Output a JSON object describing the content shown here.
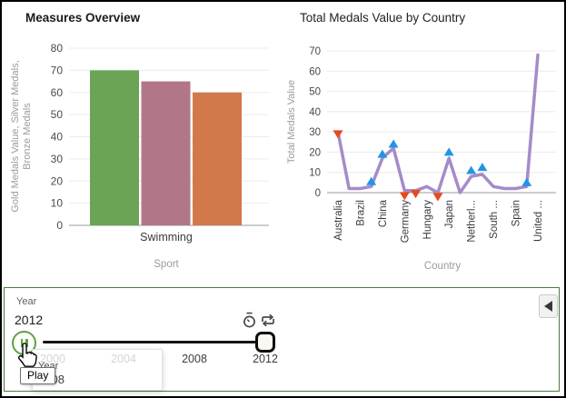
{
  "chart_data": [
    {
      "type": "bar",
      "title": "Measures Overview",
      "xlabel": "Sport",
      "ylabel": "Gold Medals Value, Silver Medals, Bronze Medals",
      "ylabel_lines": [
        "Gold Medals Value, Silver Medals,",
        "Bronze Medals"
      ],
      "categories": [
        "Swimming"
      ],
      "series": [
        {
          "name": "Gold Medals Value",
          "value": 70,
          "color": "#6BA455"
        },
        {
          "name": "Silver Medals",
          "value": 65,
          "color": "#B17789"
        },
        {
          "name": "Bronze Medals",
          "value": 60,
          "color": "#D2794B"
        }
      ],
      "ylim": [
        0,
        80
      ],
      "ytick_step": 10,
      "grid": true,
      "colors": {
        "grid": "#ebebeb",
        "axis": "#9b9b9b",
        "tick": "#4a4a4a",
        "category": "#3a3a3a",
        "axis_title": "#9b9b9b"
      }
    },
    {
      "type": "line",
      "title": "Total Medals Value by Country",
      "xlabel": "Country",
      "ylabel": "Total Medals Value",
      "x_labels": [
        "Australia",
        "Brazil",
        "China",
        "Germany",
        "Hungary",
        "Japan",
        "Netherl...",
        "South ...",
        "Spain",
        "United ..."
      ],
      "label_every": 2,
      "values": [
        30,
        2,
        2,
        3,
        17,
        22,
        1,
        1,
        3,
        0,
        17,
        0,
        8,
        9,
        3,
        2,
        2,
        3,
        68
      ],
      "line_color": "#A58BC8",
      "markers": [
        {
          "i": 0,
          "dir": "down",
          "value": 29
        },
        {
          "i": 3,
          "dir": "up",
          "value": 5.5
        },
        {
          "i": 4,
          "dir": "up",
          "value": 19
        },
        {
          "i": 5,
          "dir": "up",
          "value": 24
        },
        {
          "i": 6,
          "dir": "down",
          "value": -1.5
        },
        {
          "i": 7,
          "dir": "down",
          "value": -0.5
        },
        {
          "i": 9,
          "dir": "down",
          "value": -2
        },
        {
          "i": 10,
          "dir": "up",
          "value": 20
        },
        {
          "i": 12,
          "dir": "up",
          "value": 11
        },
        {
          "i": 13,
          "dir": "up",
          "value": 12.5
        },
        {
          "i": 17,
          "dir": "up",
          "value": 5
        }
      ],
      "marker_colors": {
        "up": "#2196E3",
        "down": "#E8491C"
      },
      "ylim": [
        0,
        70
      ],
      "ytick_step": 10,
      "grid": true,
      "colors": {
        "grid": "#ebebeb",
        "axis": "#9b9b9b",
        "tick": "#4a4a4a",
        "category": "#3a3a3a",
        "axis_title": "#9b9b9b"
      }
    }
  ],
  "filter_panel": {
    "border_color": "#4d7a3e",
    "field_label": "Year",
    "current_value": "2012",
    "play_button": {
      "tooltip": "Play",
      "state": "paused",
      "color": "#61a146"
    },
    "toolbar_icons": [
      "timer-icon",
      "repeat-icon"
    ],
    "slider": {
      "ticks": [
        "2000",
        "2004",
        "2008",
        "2012"
      ],
      "value": "2012"
    },
    "hover_tooltip": {
      "field": "Year",
      "value": "2008"
    },
    "collapse_button": {
      "direction": "left"
    }
  }
}
